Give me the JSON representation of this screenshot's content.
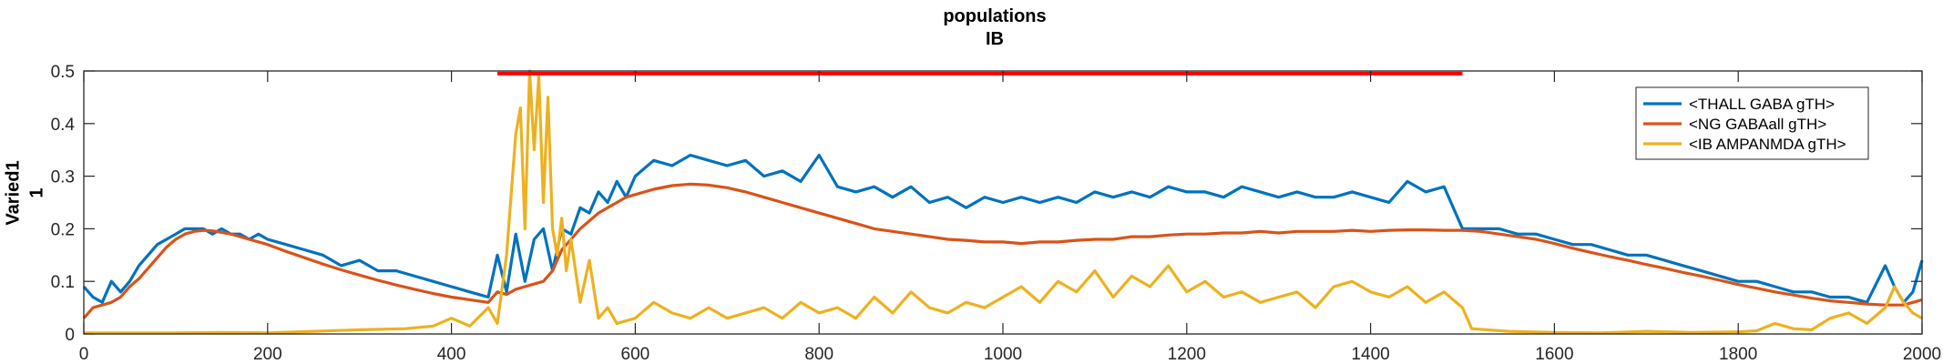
{
  "chart_data": {
    "type": "line",
    "title": [
      "populations",
      "IB"
    ],
    "ylabel": [
      "Varied1",
      "1"
    ],
    "xlabel": "",
    "xlim": [
      0,
      2000
    ],
    "ylim": [
      0,
      0.5
    ],
    "xticks": [
      0,
      200,
      400,
      600,
      800,
      1000,
      1200,
      1400,
      1600,
      1800,
      2000
    ],
    "yticks": [
      0,
      0.1,
      0.2,
      0.3,
      0.4,
      0.5
    ],
    "ytick_labels": [
      "0",
      "0.1",
      "0.2",
      "0.3",
      "0.4",
      "0.5"
    ],
    "grid": false,
    "legend_position": "top-right",
    "stimulus_bar": {
      "x": [
        450,
        1500
      ],
      "y": 0.495,
      "color": "#ff0000"
    },
    "series": [
      {
        "name": "<THALL GABA gTH>",
        "color": "#0072bd",
        "x": [
          0,
          10,
          20,
          30,
          40,
          50,
          60,
          70,
          80,
          90,
          100,
          110,
          120,
          130,
          140,
          150,
          160,
          170,
          180,
          190,
          200,
          220,
          240,
          260,
          280,
          300,
          320,
          340,
          360,
          380,
          400,
          420,
          440,
          450,
          460,
          470,
          480,
          490,
          500,
          510,
          520,
          530,
          540,
          550,
          560,
          570,
          580,
          590,
          600,
          620,
          640,
          660,
          680,
          700,
          720,
          740,
          760,
          780,
          800,
          820,
          840,
          860,
          880,
          900,
          920,
          940,
          960,
          980,
          1000,
          1020,
          1040,
          1060,
          1080,
          1100,
          1120,
          1140,
          1160,
          1180,
          1200,
          1220,
          1240,
          1260,
          1280,
          1300,
          1320,
          1340,
          1360,
          1380,
          1400,
          1420,
          1440,
          1460,
          1480,
          1500,
          1520,
          1540,
          1560,
          1580,
          1600,
          1620,
          1640,
          1660,
          1680,
          1700,
          1720,
          1740,
          1760,
          1780,
          1800,
          1820,
          1840,
          1860,
          1880,
          1900,
          1920,
          1940,
          1960,
          1970,
          1980,
          1990,
          2000
        ],
        "values": [
          0.09,
          0.07,
          0.06,
          0.1,
          0.08,
          0.1,
          0.13,
          0.15,
          0.17,
          0.18,
          0.19,
          0.2,
          0.2,
          0.2,
          0.19,
          0.2,
          0.19,
          0.19,
          0.18,
          0.19,
          0.18,
          0.17,
          0.16,
          0.15,
          0.13,
          0.14,
          0.12,
          0.12,
          0.11,
          0.1,
          0.09,
          0.08,
          0.07,
          0.15,
          0.08,
          0.19,
          0.1,
          0.18,
          0.2,
          0.12,
          0.2,
          0.19,
          0.24,
          0.23,
          0.27,
          0.25,
          0.29,
          0.26,
          0.3,
          0.33,
          0.32,
          0.34,
          0.33,
          0.32,
          0.33,
          0.3,
          0.31,
          0.29,
          0.34,
          0.28,
          0.27,
          0.28,
          0.26,
          0.28,
          0.25,
          0.26,
          0.24,
          0.26,
          0.25,
          0.26,
          0.25,
          0.26,
          0.25,
          0.27,
          0.26,
          0.27,
          0.26,
          0.28,
          0.27,
          0.27,
          0.26,
          0.28,
          0.27,
          0.26,
          0.27,
          0.26,
          0.26,
          0.27,
          0.26,
          0.25,
          0.29,
          0.27,
          0.28,
          0.2,
          0.2,
          0.2,
          0.19,
          0.19,
          0.18,
          0.17,
          0.17,
          0.16,
          0.15,
          0.15,
          0.14,
          0.13,
          0.12,
          0.11,
          0.1,
          0.1,
          0.09,
          0.08,
          0.08,
          0.07,
          0.07,
          0.06,
          0.13,
          0.09,
          0.06,
          0.08,
          0.14
        ]
      },
      {
        "name": "<NG GABAall gTH>",
        "color": "#d95319",
        "x": [
          0,
          10,
          20,
          30,
          40,
          50,
          60,
          70,
          80,
          90,
          100,
          110,
          120,
          130,
          140,
          150,
          160,
          180,
          200,
          220,
          240,
          260,
          280,
          300,
          320,
          340,
          360,
          380,
          400,
          420,
          440,
          450,
          460,
          470,
          480,
          490,
          500,
          510,
          520,
          530,
          540,
          550,
          560,
          570,
          580,
          590,
          600,
          620,
          640,
          660,
          680,
          700,
          720,
          740,
          760,
          780,
          800,
          820,
          840,
          860,
          880,
          900,
          920,
          940,
          960,
          980,
          1000,
          1020,
          1040,
          1060,
          1080,
          1100,
          1120,
          1140,
          1160,
          1180,
          1200,
          1220,
          1240,
          1260,
          1280,
          1300,
          1320,
          1340,
          1360,
          1380,
          1400,
          1420,
          1440,
          1460,
          1480,
          1500,
          1520,
          1540,
          1560,
          1580,
          1600,
          1620,
          1640,
          1660,
          1680,
          1700,
          1720,
          1740,
          1760,
          1780,
          1800,
          1820,
          1840,
          1860,
          1880,
          1900,
          1920,
          1940,
          1960,
          1980,
          2000
        ],
        "values": [
          0.03,
          0.05,
          0.055,
          0.06,
          0.07,
          0.09,
          0.105,
          0.125,
          0.145,
          0.165,
          0.18,
          0.19,
          0.195,
          0.197,
          0.196,
          0.193,
          0.19,
          0.18,
          0.17,
          0.157,
          0.145,
          0.133,
          0.122,
          0.112,
          0.102,
          0.093,
          0.085,
          0.077,
          0.07,
          0.065,
          0.06,
          0.08,
          0.075,
          0.085,
          0.09,
          0.095,
          0.1,
          0.12,
          0.16,
          0.18,
          0.2,
          0.215,
          0.23,
          0.24,
          0.25,
          0.26,
          0.265,
          0.275,
          0.282,
          0.285,
          0.283,
          0.278,
          0.27,
          0.26,
          0.25,
          0.24,
          0.23,
          0.22,
          0.21,
          0.2,
          0.195,
          0.19,
          0.185,
          0.18,
          0.178,
          0.175,
          0.175,
          0.172,
          0.175,
          0.175,
          0.178,
          0.18,
          0.18,
          0.185,
          0.185,
          0.188,
          0.19,
          0.19,
          0.192,
          0.192,
          0.195,
          0.192,
          0.195,
          0.195,
          0.195,
          0.197,
          0.195,
          0.197,
          0.198,
          0.198,
          0.197,
          0.197,
          0.195,
          0.19,
          0.185,
          0.18,
          0.172,
          0.163,
          0.155,
          0.147,
          0.14,
          0.132,
          0.125,
          0.117,
          0.11,
          0.102,
          0.094,
          0.087,
          0.08,
          0.074,
          0.068,
          0.063,
          0.06,
          0.057,
          0.055,
          0.055,
          0.065
        ]
      },
      {
        "name": "<IB AMPANMDA gTH>",
        "color": "#edb120",
        "x": [
          0,
          50,
          100,
          150,
          200,
          250,
          300,
          350,
          380,
          400,
          420,
          440,
          450,
          460,
          470,
          475,
          480,
          485,
          490,
          495,
          500,
          505,
          510,
          515,
          520,
          525,
          530,
          540,
          550,
          560,
          570,
          580,
          600,
          620,
          640,
          660,
          680,
          700,
          720,
          740,
          760,
          780,
          800,
          820,
          840,
          860,
          880,
          900,
          920,
          940,
          960,
          980,
          1000,
          1020,
          1040,
          1060,
          1080,
          1100,
          1120,
          1140,
          1160,
          1180,
          1200,
          1220,
          1240,
          1260,
          1280,
          1300,
          1320,
          1340,
          1360,
          1380,
          1400,
          1420,
          1440,
          1460,
          1480,
          1500,
          1510,
          1550,
          1600,
          1650,
          1700,
          1750,
          1800,
          1820,
          1840,
          1860,
          1880,
          1900,
          1920,
          1940,
          1960,
          1970,
          1980,
          1990,
          2000
        ],
        "values": [
          0.002,
          0.002,
          0.002,
          0.003,
          0.002,
          0.005,
          0.008,
          0.01,
          0.015,
          0.03,
          0.015,
          0.05,
          0.02,
          0.15,
          0.38,
          0.43,
          0.2,
          0.5,
          0.35,
          0.49,
          0.25,
          0.45,
          0.2,
          0.15,
          0.22,
          0.12,
          0.18,
          0.06,
          0.14,
          0.03,
          0.05,
          0.02,
          0.03,
          0.06,
          0.04,
          0.03,
          0.05,
          0.03,
          0.04,
          0.05,
          0.03,
          0.06,
          0.04,
          0.05,
          0.03,
          0.07,
          0.04,
          0.08,
          0.05,
          0.04,
          0.06,
          0.05,
          0.07,
          0.09,
          0.06,
          0.1,
          0.08,
          0.12,
          0.07,
          0.11,
          0.09,
          0.13,
          0.08,
          0.1,
          0.07,
          0.08,
          0.06,
          0.07,
          0.08,
          0.05,
          0.09,
          0.1,
          0.08,
          0.07,
          0.09,
          0.06,
          0.08,
          0.05,
          0.01,
          0.005,
          0.003,
          0.002,
          0.005,
          0.003,
          0.004,
          0.006,
          0.02,
          0.01,
          0.008,
          0.03,
          0.04,
          0.02,
          0.05,
          0.09,
          0.06,
          0.04,
          0.03
        ]
      }
    ]
  }
}
